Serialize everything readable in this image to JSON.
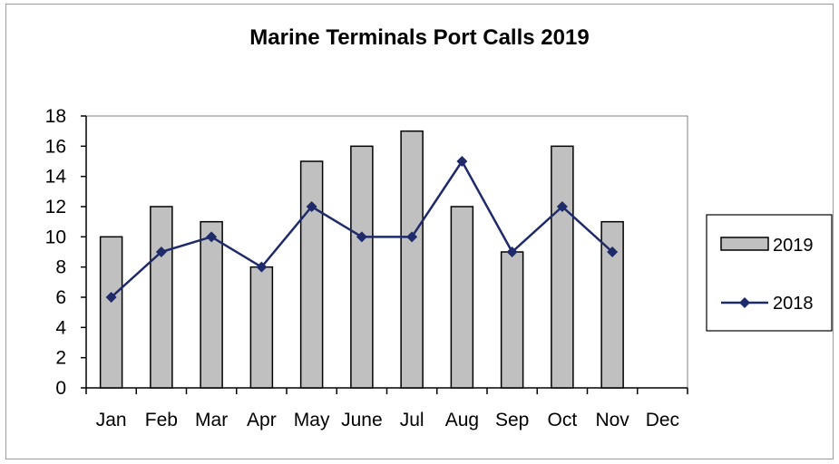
{
  "chart_data": {
    "type": "bar",
    "title": "Marine Terminals Port Calls 2019",
    "categories": [
      "Jan",
      "Feb",
      "Mar",
      "Apr",
      "May",
      "June",
      "Jul",
      "Aug",
      "Sep",
      "Oct",
      "Nov",
      "Dec"
    ],
    "series": [
      {
        "name": "2019",
        "kind": "bar",
        "color": "#c0c0c0",
        "values": [
          10,
          12,
          11,
          8,
          15,
          16,
          17,
          12,
          9,
          16,
          11,
          null
        ]
      },
      {
        "name": "2018",
        "kind": "line",
        "color": "#1f2a6b",
        "marker": "diamond",
        "values": [
          6,
          9,
          10,
          8,
          12,
          10,
          10,
          15,
          9,
          12,
          9,
          null
        ]
      }
    ],
    "ylim": [
      0,
      18
    ],
    "yticks": [
      0,
      2,
      4,
      6,
      8,
      10,
      12,
      14,
      16,
      18
    ],
    "xlabel": "",
    "ylabel": "",
    "grid": false,
    "legend_position": "right"
  }
}
